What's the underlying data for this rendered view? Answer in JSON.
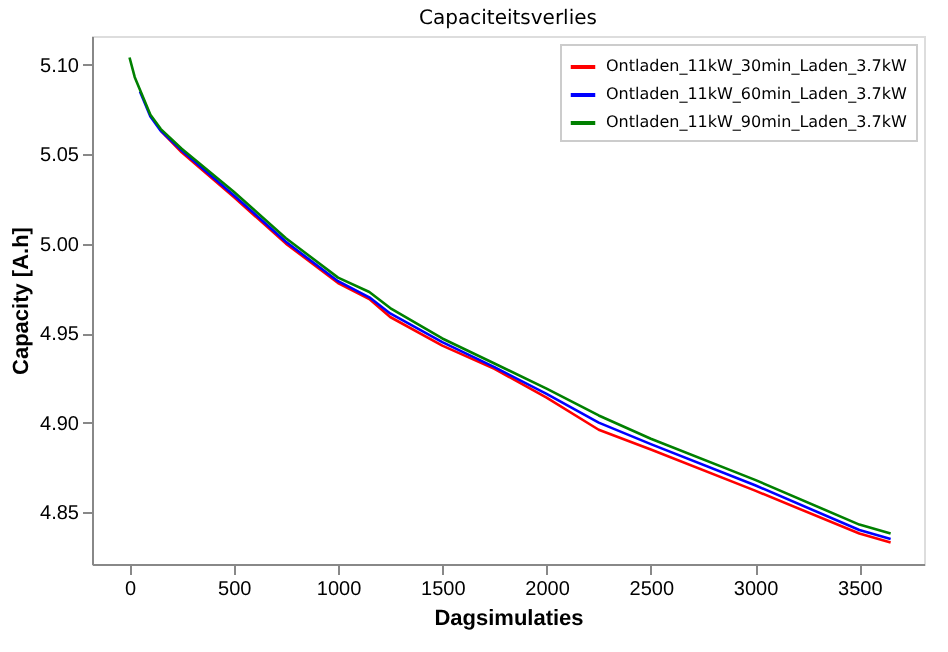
{
  "chart_data": {
    "type": "line",
    "title": "Capaciteitsverlies",
    "xlabel": "Dagsimulaties",
    "ylabel": "Capacity [A.h]",
    "x": [
      0,
      25,
      50,
      100,
      150,
      250,
      500,
      750,
      1000,
      1150,
      1250,
      1500,
      1750,
      2000,
      2250,
      2500,
      3000,
      3500,
      3650
    ],
    "series": [
      {
        "name": "Ontladen_11kW_30min_Laden_3.7kW",
        "color": "#ff0000",
        "values": [
          null,
          null,
          null,
          null,
          5.063,
          5.051,
          5.026,
          5.0,
          4.978,
          4.969,
          4.959,
          4.943,
          4.93,
          4.914,
          4.896,
          4.885,
          4.862,
          4.838,
          4.833
        ]
      },
      {
        "name": "Ontladen_11kW_60min_Laden_3.7kW",
        "color": "#0000ff",
        "values": [
          null,
          null,
          5.085,
          5.071,
          5.063,
          5.052,
          5.027,
          5.001,
          4.979,
          4.97,
          4.961,
          4.945,
          4.931,
          4.916,
          4.9,
          4.888,
          4.865,
          4.84,
          4.835
        ]
      },
      {
        "name": "Ontladen_11kW_90min_Laden_3.7kW",
        "color": "#008000",
        "values": [
          5.104,
          5.093,
          5.086,
          5.072,
          5.064,
          5.053,
          5.029,
          5.003,
          4.981,
          4.973,
          4.964,
          4.947,
          4.933,
          4.919,
          4.904,
          4.891,
          4.868,
          4.843,
          4.838
        ]
      }
    ],
    "xlim": [
      -180,
      3810
    ],
    "ylim": [
      4.821,
      5.116
    ],
    "xticks": [
      0,
      500,
      1000,
      1500,
      2000,
      2500,
      3000,
      3500
    ],
    "yticks": [
      {
        "value": 4.85,
        "label": "4.85"
      },
      {
        "value": 4.9,
        "label": "4.90"
      },
      {
        "value": 4.95,
        "label": "4.95"
      },
      {
        "value": 5.0,
        "label": "5.00"
      },
      {
        "value": 5.05,
        "label": "5.05"
      },
      {
        "value": 5.1,
        "label": "5.10"
      }
    ],
    "legend": "top right",
    "grid": false
  }
}
